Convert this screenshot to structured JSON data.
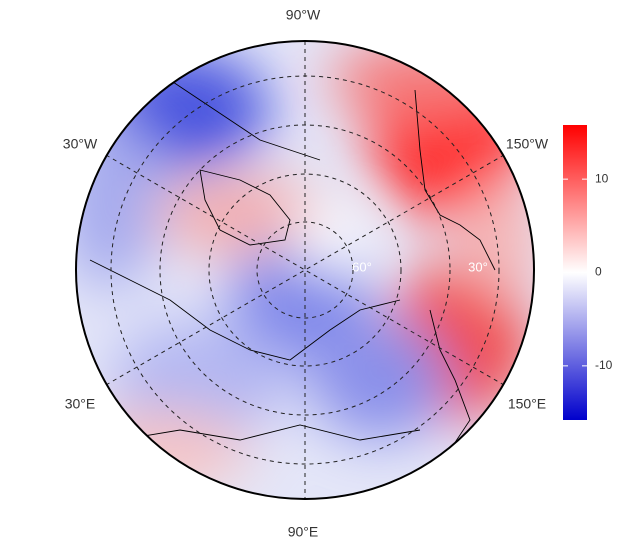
{
  "map": {
    "lon_labels": [
      "90°W",
      "150°W",
      "150°E",
      "90°E",
      "30°E",
      "30°W"
    ],
    "lat_labels": [
      "60°",
      "30°"
    ]
  },
  "colorbar": {
    "lim": [
      -15.8,
      15.8
    ],
    "ticks": [
      -10,
      0,
      10
    ],
    "colors": [
      "#0000cc",
      "#ffffff",
      "#ff0000"
    ]
  }
}
